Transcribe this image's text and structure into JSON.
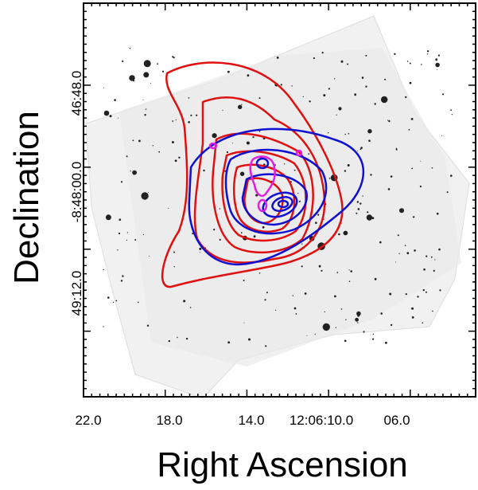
{
  "x_axis": {
    "label": "Right Ascension",
    "ticks": [
      "22.0",
      "18.0",
      "14.0",
      "12:06:10.0",
      "06.0"
    ]
  },
  "y_axis": {
    "label": "Declination",
    "ticks": [
      "46:48.0",
      "-8:48:00.0",
      "49:12.0"
    ]
  }
}
